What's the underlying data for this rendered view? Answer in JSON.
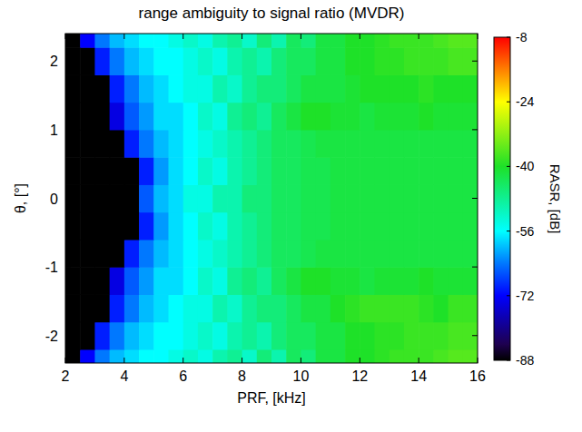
{
  "chart_data": {
    "type": "heatmap",
    "title": "range ambiguity to signal ratio (MVDR)",
    "x_label": "PRF, [kHz]",
    "y_label": "θ, [°]",
    "colorbar_label": "RASR, [dB]",
    "xlim": [
      2,
      16
    ],
    "xticks": [
      2,
      4,
      6,
      8,
      10,
      12,
      14,
      16
    ],
    "ylim": [
      -2.4,
      2.4
    ],
    "yticks": [
      -2,
      -1,
      0,
      1,
      2
    ],
    "zlim": [
      -88,
      -8
    ],
    "zticks": [
      -88,
      -72,
      -56,
      -40,
      -24,
      -8
    ],
    "x": [
      2.25,
      2.75,
      3.25,
      3.75,
      4.25,
      4.75,
      5.25,
      5.75,
      6.25,
      6.75,
      7.25,
      7.75,
      8.25,
      8.75,
      9.25,
      9.75,
      10.25,
      10.75,
      11.25,
      11.75,
      12.25,
      12.75,
      13.25,
      13.75,
      14.25,
      14.75,
      15.25,
      15.75
    ],
    "y": [
      -2.4,
      -2.0,
      -1.6,
      -1.2,
      -0.8,
      -0.4,
      0.0,
      0.4,
      0.8,
      1.2,
      1.6,
      2.0,
      2.4
    ],
    "z": [
      [
        -88,
        -72,
        -64,
        -60,
        -58,
        -56,
        -56,
        -54,
        -52,
        -54,
        -50,
        -48,
        -52,
        -46,
        -50,
        -44,
        -46,
        -42,
        -42,
        -40,
        -40,
        -39,
        -38,
        -38,
        -38,
        -37,
        -36,
        -36
      ],
      [
        -88,
        -88,
        -70,
        -64,
        -60,
        -58,
        -56,
        -56,
        -54,
        -52,
        -54,
        -50,
        -48,
        -50,
        -46,
        -44,
        -44,
        -42,
        -42,
        -40,
        -40,
        -39,
        -39,
        -38,
        -38,
        -38,
        -37,
        -37
      ],
      [
        -88,
        -88,
        -88,
        -70,
        -64,
        -60,
        -58,
        -56,
        -54,
        -54,
        -50,
        -52,
        -48,
        -46,
        -46,
        -44,
        -42,
        -42,
        -40,
        -39,
        -38,
        -38,
        -38,
        -38,
        -39,
        -40,
        -38,
        -38
      ],
      [
        -88,
        -88,
        -88,
        -74,
        -66,
        -62,
        -58,
        -58,
        -56,
        -52,
        -54,
        -48,
        -46,
        -48,
        -44,
        -42,
        -40,
        -40,
        -41,
        -41,
        -42,
        -41,
        -41,
        -41,
        -40,
        -41,
        -41,
        -41
      ],
      [
        -88,
        -88,
        -88,
        -88,
        -70,
        -64,
        -60,
        -58,
        -56,
        -54,
        -52,
        -50,
        -48,
        -46,
        -44,
        -44,
        -43,
        -42,
        -42,
        -42,
        -42,
        -42,
        -42,
        -42,
        -42,
        -42,
        -42,
        -42
      ],
      [
        -88,
        -88,
        -88,
        -88,
        -88,
        -70,
        -62,
        -58,
        -56,
        -52,
        -54,
        -50,
        -48,
        -46,
        -44,
        -44,
        -43,
        -43,
        -42,
        -42,
        -42,
        -42,
        -42,
        -42,
        -42,
        -42,
        -42,
        -42
      ],
      [
        -88,
        -88,
        -88,
        -88,
        -88,
        -66,
        -60,
        -58,
        -54,
        -54,
        -50,
        -50,
        -46,
        -46,
        -44,
        -44,
        -43,
        -43,
        -42,
        -42,
        -42,
        -42,
        -42,
        -42,
        -42,
        -42,
        -42,
        -42
      ],
      [
        -88,
        -88,
        -88,
        -88,
        -88,
        -70,
        -62,
        -58,
        -56,
        -52,
        -54,
        -50,
        -48,
        -46,
        -44,
        -44,
        -43,
        -43,
        -42,
        -42,
        -42,
        -42,
        -42,
        -42,
        -42,
        -42,
        -42,
        -42
      ],
      [
        -88,
        -88,
        -88,
        -88,
        -70,
        -64,
        -60,
        -58,
        -56,
        -54,
        -52,
        -50,
        -48,
        -46,
        -44,
        -44,
        -43,
        -42,
        -42,
        -42,
        -42,
        -42,
        -42,
        -42,
        -42,
        -42,
        -42,
        -42
      ],
      [
        -88,
        -88,
        -88,
        -74,
        -66,
        -62,
        -58,
        -58,
        -56,
        -52,
        -54,
        -48,
        -46,
        -48,
        -44,
        -42,
        -40,
        -40,
        -41,
        -41,
        -42,
        -41,
        -41,
        -41,
        -40,
        -41,
        -41,
        -41
      ],
      [
        -88,
        -88,
        -88,
        -70,
        -64,
        -60,
        -58,
        -56,
        -54,
        -54,
        -50,
        -52,
        -48,
        -46,
        -46,
        -44,
        -42,
        -42,
        -42,
        -41,
        -40,
        -40,
        -40,
        -40,
        -39,
        -40,
        -40,
        -40
      ],
      [
        -88,
        -88,
        -70,
        -64,
        -60,
        -58,
        -56,
        -56,
        -54,
        -52,
        -54,
        -50,
        -48,
        -50,
        -46,
        -44,
        -44,
        -42,
        -42,
        -40,
        -40,
        -39,
        -39,
        -38,
        -38,
        -38,
        -37,
        -37
      ],
      [
        -88,
        -72,
        -64,
        -60,
        -58,
        -56,
        -56,
        -54,
        -52,
        -54,
        -50,
        -48,
        -52,
        -46,
        -50,
        -44,
        -46,
        -42,
        -42,
        -40,
        -40,
        -39,
        -38,
        -38,
        -38,
        -37,
        -36,
        -36
      ]
    ]
  }
}
